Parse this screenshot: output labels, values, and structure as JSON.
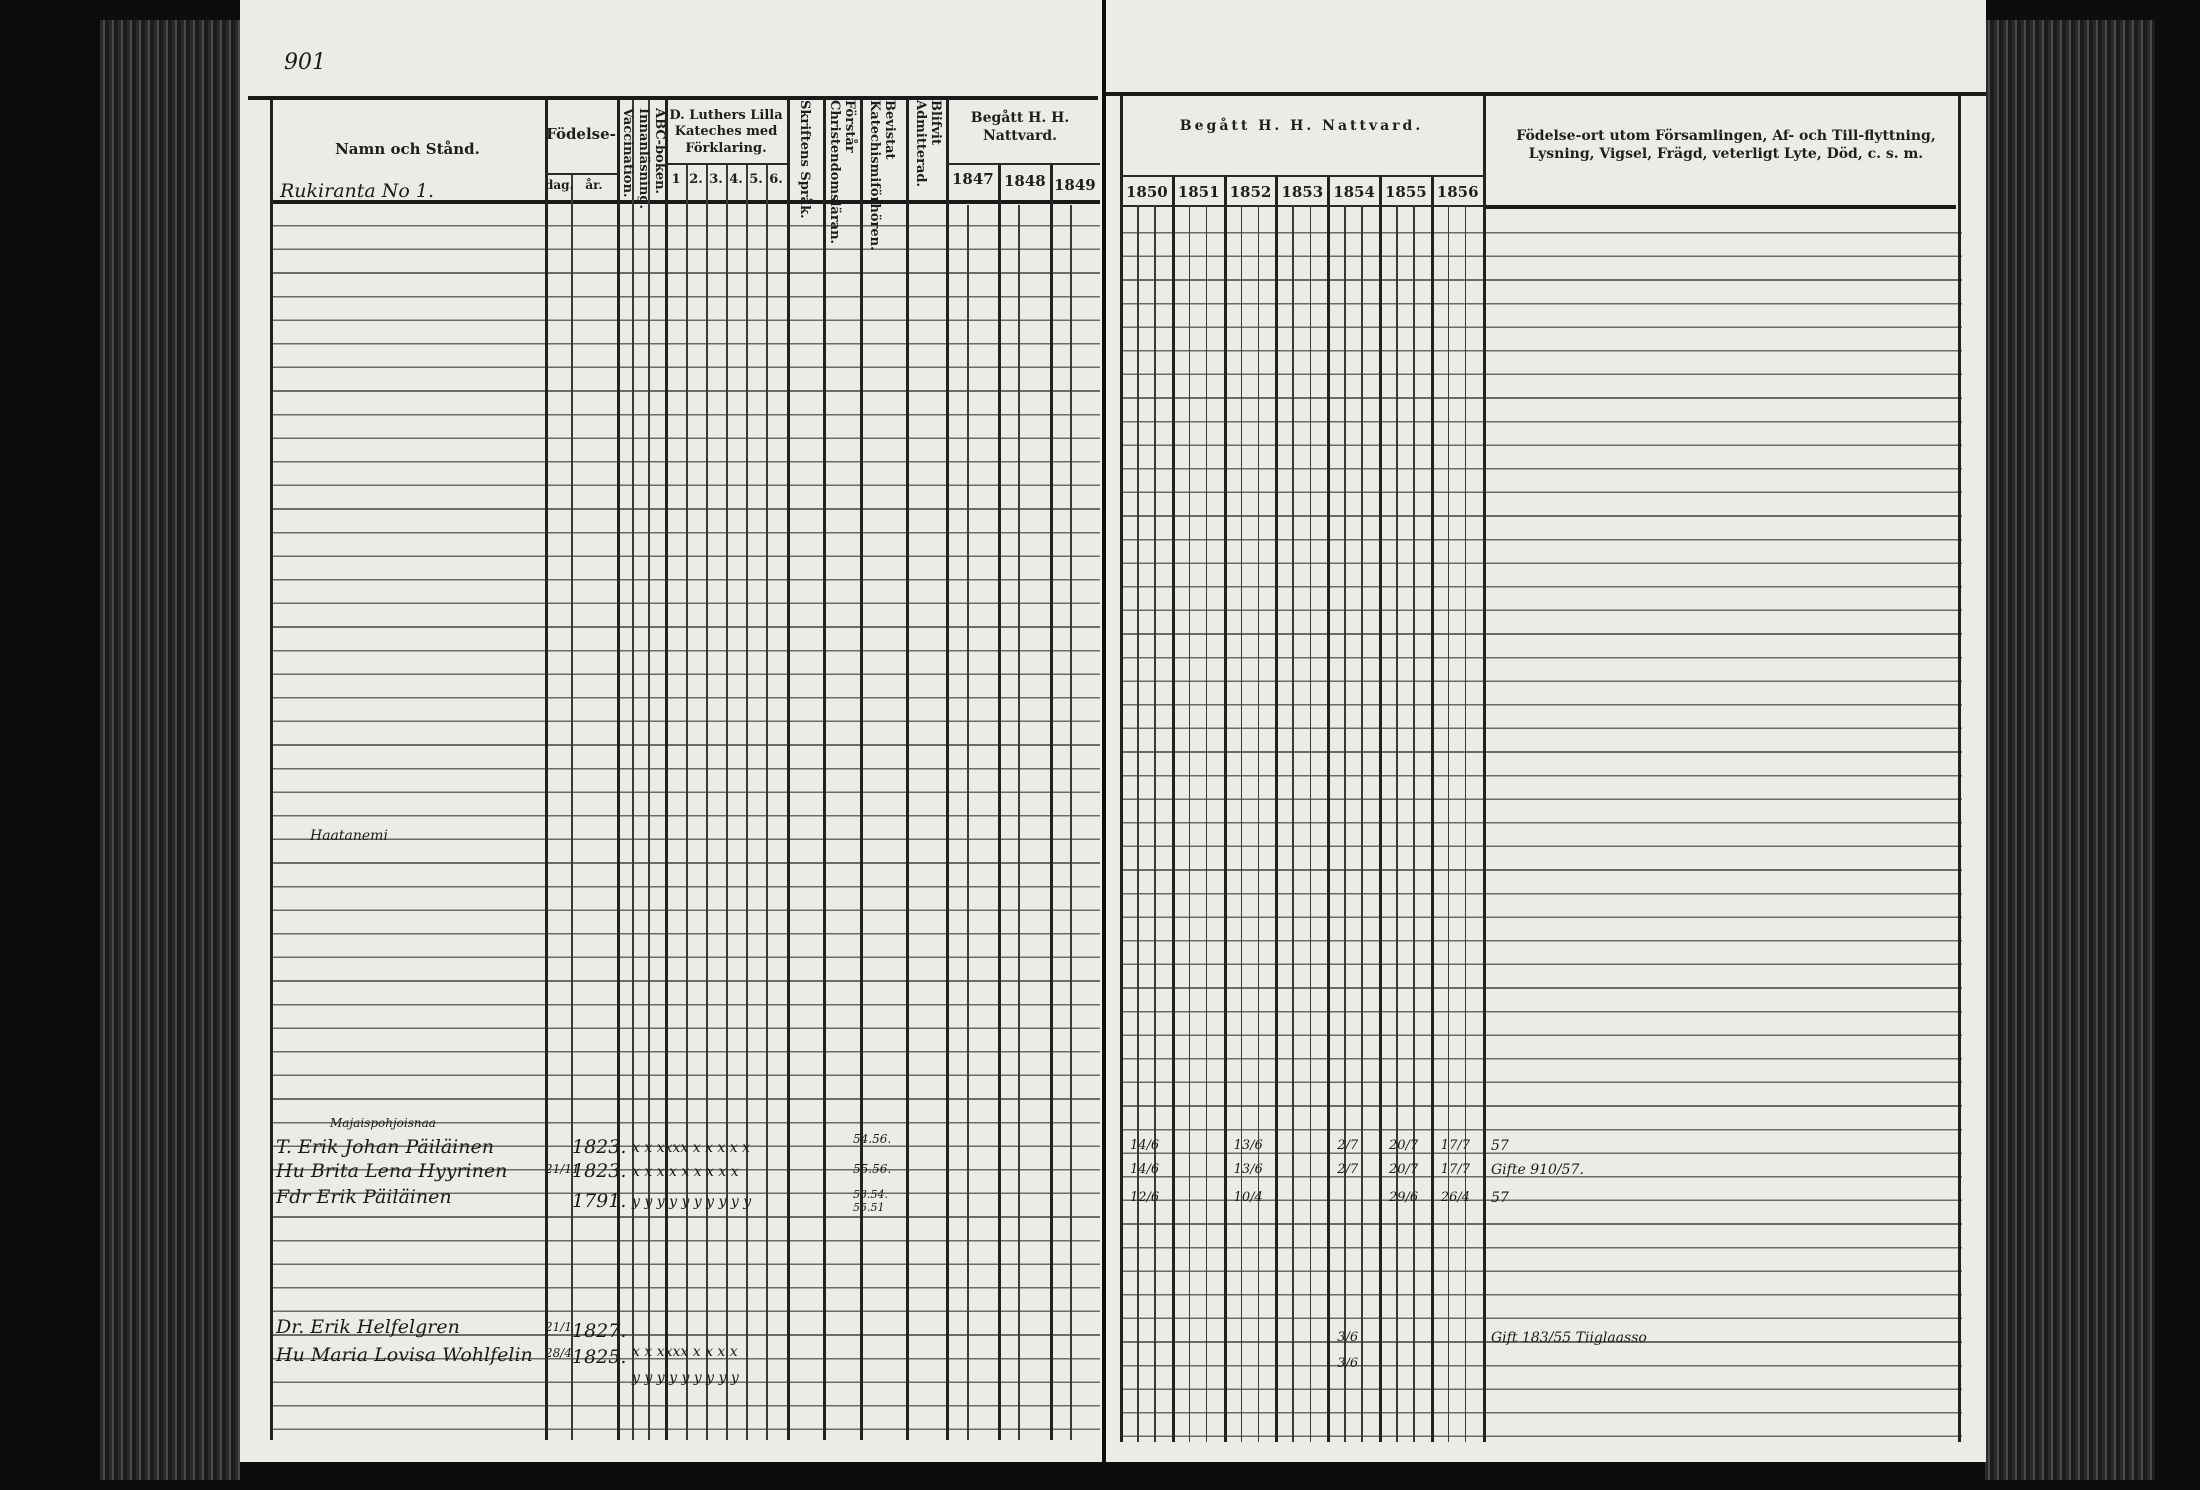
{
  "left_page": {
    "page_number": "901",
    "headers": {
      "name": "Namn och Stånd.",
      "birth": "Födelse-",
      "birth_day": "dag.",
      "birth_year": "år.",
      "vaccination": "Vaccination.",
      "reading": "Innanläsning.",
      "abc": "ABC-boken.",
      "luther": "D. Luthers Lilla Kateches med Förklaring.",
      "luther_parts": [
        "1",
        "2.",
        "3.",
        "4.",
        "5.",
        "6."
      ],
      "scripture": "Skriftens Språk.",
      "understands": "Förstår Christendomsläran.",
      "attended": "Bevistat Katechismiförhören.",
      "admitted": "Blifvit Admitterad.",
      "communion": "Begått H. H. Nattvard.",
      "years": [
        "1847",
        "1848",
        "1849"
      ]
    },
    "village_label": "Rukiranta No 1.",
    "section_label": "Haatanemi",
    "farm_label": "Majaispohjoisnaa",
    "entries": [
      {
        "name": "T. Erik Johan Päiläinen",
        "day": "",
        "year": "1823.",
        "marks": "x x xxxx x x x x x",
        "attended": "54.56."
      },
      {
        "name": "Hu Brita Lena Hyyrinen",
        "day": "21/11",
        "year": "1823.",
        "marks": "x x x x x x x x x",
        "attended": "55.56."
      },
      {
        "name": "Fdr Erik Päiläinen",
        "day": "",
        "year": "1791.",
        "marks": "y y y y y y y y y y",
        "attended": "53.54. 55.51"
      },
      {
        "name": "Dr. Erik Helfelgren",
        "day": "21/1",
        "year": "1827.",
        "marks": "x x xxxx x x x x",
        "attended": ""
      },
      {
        "name": "Hu Maria Lovisa Wohlfelin",
        "day": "28/4",
        "year": "1825.",
        "marks": "y y y y y y y y y",
        "attended": ""
      }
    ]
  },
  "right_page": {
    "headers": {
      "communion": "Begått H. H. Nattvard.",
      "years": [
        "1850",
        "1851",
        "1852",
        "1853",
        "1854",
        "1855",
        "1856"
      ],
      "remarks": "Födelse-ort utom Församlingen, Af- och Till-flyttning, Lysning, Vigsel, Frägd, veterligt Lyte, Död, c. s. m."
    },
    "entries": [
      {
        "c1850": "14/6",
        "c1852": "13/6",
        "c1854": "2/7",
        "c1855": "20/7",
        "c1856": "17/7",
        "remark": "57"
      },
      {
        "c1850": "14/6",
        "c1852": "13/6",
        "c1854": "2/7",
        "c1855": "20/7",
        "c1856": "17/7",
        "remark": "Gifte 910/57."
      },
      {
        "c1850": "12/6",
        "c1852": "10/4",
        "c1854": "",
        "c1855": "29/6",
        "c1856": "26/4",
        "remark": "57"
      },
      {
        "c1854": "3/6",
        "remark": "Gift 183/55 Tiiglaasso"
      },
      {
        "c1854": "3/6",
        "remark": ""
      }
    ]
  }
}
